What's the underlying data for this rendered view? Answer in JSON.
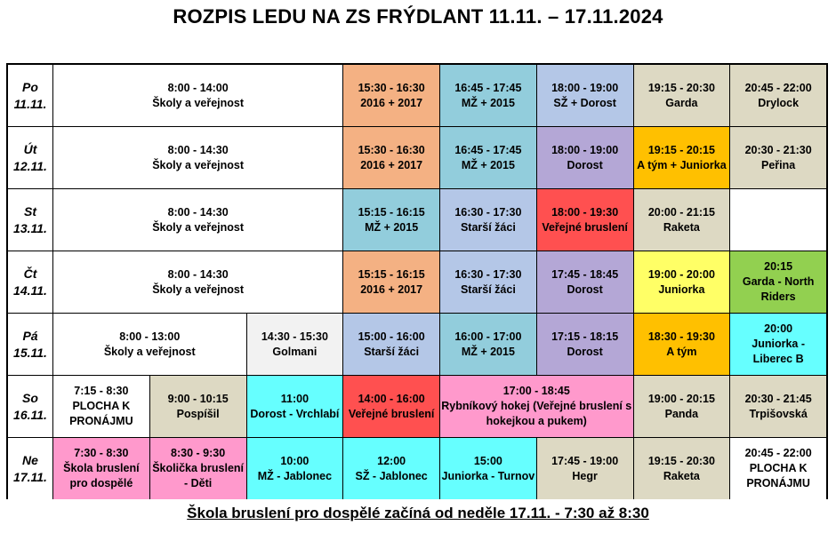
{
  "title": "ROZPIS LEDU NA ZS FRÝDLANT 11.11. – 17.11.2024",
  "footer": "Škola bruslení pro dospělé začíná od neděle 17.11.  - 7:30 až 8:30",
  "colors": {
    "peach": "#f4b183",
    "teal": "#92cddc",
    "purple": "#b4a7d6",
    "tan": "#ddd9c3",
    "orange": "#ffc000",
    "red": "#ff5050",
    "yellow": "#ffff66",
    "green": "#92d050",
    "cyan": "#66ffff",
    "pink": "#ff99cc",
    "light-blue": "#b4c7e7",
    "light-gray": "#f2f2f2",
    "white": "#ffffff"
  },
  "rows": [
    {
      "day": "Po",
      "date": "11.11.",
      "cells": [
        {
          "time": "8:00 - 14:00",
          "label": "Školy a veřejnost",
          "span": 3,
          "color": "white"
        },
        {
          "time": "15:30 - 16:30",
          "label": "2016 + 2017",
          "span": 1,
          "color": "peach"
        },
        {
          "time": "16:45 - 17:45",
          "label": "MŽ + 2015",
          "span": 1,
          "color": "teal"
        },
        {
          "time": "18:00 - 19:00",
          "label": "SŽ + Dorost",
          "span": 1,
          "color": "light-blue"
        },
        {
          "time": "19:15 - 20:30",
          "label": "Garda",
          "span": 1,
          "color": "tan"
        },
        {
          "time": "20:45 - 22:00",
          "label": "Drylock",
          "span": 1,
          "color": "tan"
        }
      ]
    },
    {
      "day": "Út",
      "date": "12.11.",
      "cells": [
        {
          "time": "8:00 - 14:30",
          "label": "Školy a veřejnost",
          "span": 3,
          "color": "white"
        },
        {
          "time": "15:30 - 16:30",
          "label": "2016 + 2017",
          "span": 1,
          "color": "peach"
        },
        {
          "time": "16:45 - 17:45",
          "label": "MŽ + 2015",
          "span": 1,
          "color": "teal"
        },
        {
          "time": "18:00 - 19:00",
          "label": "Dorost",
          "span": 1,
          "color": "purple"
        },
        {
          "time": "19:15 - 20:15",
          "label": "A tým + Juniorka",
          "span": 1,
          "color": "orange"
        },
        {
          "time": "20:30 - 21:30",
          "label": "Peřina",
          "span": 1,
          "color": "tan"
        }
      ]
    },
    {
      "day": "St",
      "date": "13.11.",
      "cells": [
        {
          "time": "8:00 - 14:30",
          "label": "Školy a veřejnost",
          "span": 3,
          "color": "white"
        },
        {
          "time": "15:15 - 16:15",
          "label": "MŽ + 2015",
          "span": 1,
          "color": "teal"
        },
        {
          "time": "16:30 - 17:30",
          "label": "Starší žáci",
          "span": 1,
          "color": "light-blue"
        },
        {
          "time": "18:00 - 19:30",
          "label": "Veřejné bruslení",
          "span": 1,
          "color": "red"
        },
        {
          "time": "20:00 - 21:15",
          "label": "Raketa",
          "span": 1,
          "color": "tan"
        },
        {
          "time": "",
          "label": "",
          "span": 1,
          "color": "white"
        }
      ]
    },
    {
      "day": "Čt",
      "date": "14.11.",
      "cells": [
        {
          "time": "8:00 - 14:30",
          "label": "Školy a veřejnost",
          "span": 3,
          "color": "white"
        },
        {
          "time": "15:15 - 16:15",
          "label": "2016 + 2017",
          "span": 1,
          "color": "peach"
        },
        {
          "time": "16:30 - 17:30",
          "label": "Starší žáci",
          "span": 1,
          "color": "light-blue"
        },
        {
          "time": "17:45 - 18:45",
          "label": "Dorost",
          "span": 1,
          "color": "purple"
        },
        {
          "time": "19:00 - 20:00",
          "label": "Juniorka",
          "span": 1,
          "color": "yellow"
        },
        {
          "time": "20:15",
          "label": "Garda - North Riders",
          "span": 1,
          "color": "green"
        }
      ]
    },
    {
      "day": "Pá",
      "date": "15.11.",
      "cells": [
        {
          "time": "8:00 - 13:00",
          "label": "Školy a veřejnost",
          "span": 2,
          "color": "white"
        },
        {
          "time": "14:30 - 15:30",
          "label": "Golmani",
          "span": 1,
          "color": "light-gray"
        },
        {
          "time": "15:00 - 16:00",
          "label": "Starší žáci",
          "span": 1,
          "color": "light-blue"
        },
        {
          "time": "16:00 - 17:00",
          "label": "MŽ + 2015",
          "span": 1,
          "color": "teal"
        },
        {
          "time": "17:15 - 18:15",
          "label": "Dorost",
          "span": 1,
          "color": "purple"
        },
        {
          "time": "18:30 - 19:30",
          "label": "A tým",
          "span": 1,
          "color": "orange"
        },
        {
          "time": "20:00",
          "label": "Juniorka - Liberec B",
          "span": 1,
          "color": "cyan"
        }
      ]
    },
    {
      "day": "So",
      "date": "16.11.",
      "cells": [
        {
          "time": "7:15 - 8:30",
          "label": "PLOCHA K PRONÁJMU",
          "span": 1,
          "color": "white"
        },
        {
          "time": "9:00 - 10:15",
          "label": "Pospíšil",
          "span": 1,
          "color": "tan"
        },
        {
          "time": "11:00",
          "label": "Dorost - Vrchlabí",
          "span": 1,
          "color": "cyan"
        },
        {
          "time": "14:00 - 16:00",
          "label": "Veřejné bruslení",
          "span": 1,
          "color": "red"
        },
        {
          "time": "17:00 - 18:45",
          "label": "Rybníkový hokej (Veřejné bruslení s hokejkou a pukem)",
          "span": 2,
          "color": "pink"
        },
        {
          "time": "19:00 - 20:15",
          "label": "Panda",
          "span": 1,
          "color": "tan"
        },
        {
          "time": "20:30 - 21:45",
          "label": "Trpišovská",
          "span": 1,
          "color": "tan"
        }
      ]
    },
    {
      "day": "Ne",
      "date": "17.11.",
      "cells": [
        {
          "time": "7:30 - 8:30",
          "label": "Škola bruslení pro dospělé",
          "span": 1,
          "color": "pink"
        },
        {
          "time": "8:30 - 9:30",
          "label": "Školička bruslení - Děti",
          "span": 1,
          "color": "pink"
        },
        {
          "time": "10:00",
          "label": "MŽ - Jablonec",
          "span": 1,
          "color": "cyan"
        },
        {
          "time": "12:00",
          "label": "SŽ - Jablonec",
          "span": 1,
          "color": "cyan"
        },
        {
          "time": "15:00",
          "label": "Juniorka - Turnov",
          "span": 1,
          "color": "cyan"
        },
        {
          "time": "17:45 - 19:00",
          "label": "Hegr",
          "span": 1,
          "color": "tan"
        },
        {
          "time": "19:15 - 20:30",
          "label": "Raketa",
          "span": 1,
          "color": "tan"
        },
        {
          "time": "20:45 - 22:00",
          "label": "PLOCHA K PRONÁJMU",
          "span": 1,
          "color": "white"
        }
      ]
    }
  ]
}
